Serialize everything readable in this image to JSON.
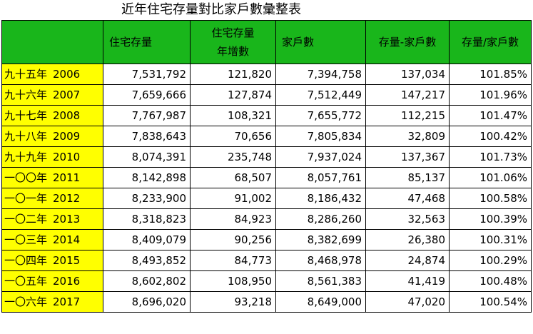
{
  "title": "近年住宅存量對比家戶數彙整表",
  "columns": {
    "year": "",
    "stock": "住宅存量",
    "increase_line1": "住宅存量",
    "increase_line2": "年增數",
    "households": "家戶數",
    "diff": "存量-家戶數",
    "ratio": "存量/家戶數"
  },
  "colors": {
    "header_background": "#19b61b",
    "year_background": "#ffff00"
  },
  "rows": [
    {
      "year_cn": "九十五年",
      "year": "2006",
      "stock": "7,531,792",
      "increase": "121,820",
      "households": "7,394,758",
      "diff": "137,034",
      "ratio": "101.85%"
    },
    {
      "year_cn": "九十六年",
      "year": "2007",
      "stock": "7,659,666",
      "increase": "127,874",
      "households": "7,512,449",
      "diff": "147,217",
      "ratio": "101.96%"
    },
    {
      "year_cn": "九十七年",
      "year": "2008",
      "stock": "7,767,987",
      "increase": "108,321",
      "households": "7,655,772",
      "diff": "112,215",
      "ratio": "101.47%"
    },
    {
      "year_cn": "九十八年",
      "year": "2009",
      "stock": "7,838,643",
      "increase": "70,656",
      "households": "7,805,834",
      "diff": "32,809",
      "ratio": "100.42%"
    },
    {
      "year_cn": "九十九年",
      "year": "2010",
      "stock": "8,074,391",
      "increase": "235,748",
      "households": "7,937,024",
      "diff": "137,367",
      "ratio": "101.73%"
    },
    {
      "year_cn": "一〇〇年",
      "year": "2011",
      "stock": "8,142,898",
      "increase": "68,507",
      "households": "8,057,761",
      "diff": "85,137",
      "ratio": "101.06%"
    },
    {
      "year_cn": "一〇一年",
      "year": "2012",
      "stock": "8,233,900",
      "increase": "91,002",
      "households": "8,186,432",
      "diff": "47,468",
      "ratio": "100.58%"
    },
    {
      "year_cn": "一〇二年",
      "year": "2013",
      "stock": "8,318,823",
      "increase": "84,923",
      "households": "8,286,260",
      "diff": "32,563",
      "ratio": "100.39%"
    },
    {
      "year_cn": "一〇三年",
      "year": "2014",
      "stock": "8,409,079",
      "increase": "90,256",
      "households": "8,382,699",
      "diff": "26,380",
      "ratio": "100.31%"
    },
    {
      "year_cn": "一〇四年",
      "year": "2015",
      "stock": "8,493,852",
      "increase": "84,773",
      "households": "8,468,978",
      "diff": "24,874",
      "ratio": "100.29%"
    },
    {
      "year_cn": "一〇五年",
      "year": "2016",
      "stock": "8,602,802",
      "increase": "108,950",
      "households": "8,561,383",
      "diff": "41,419",
      "ratio": "100.48%"
    },
    {
      "year_cn": "一〇六年",
      "year": "2017",
      "stock": "8,696,020",
      "increase": "93,218",
      "households": "8,649,000",
      "diff": "47,020",
      "ratio": "100.54%"
    }
  ]
}
